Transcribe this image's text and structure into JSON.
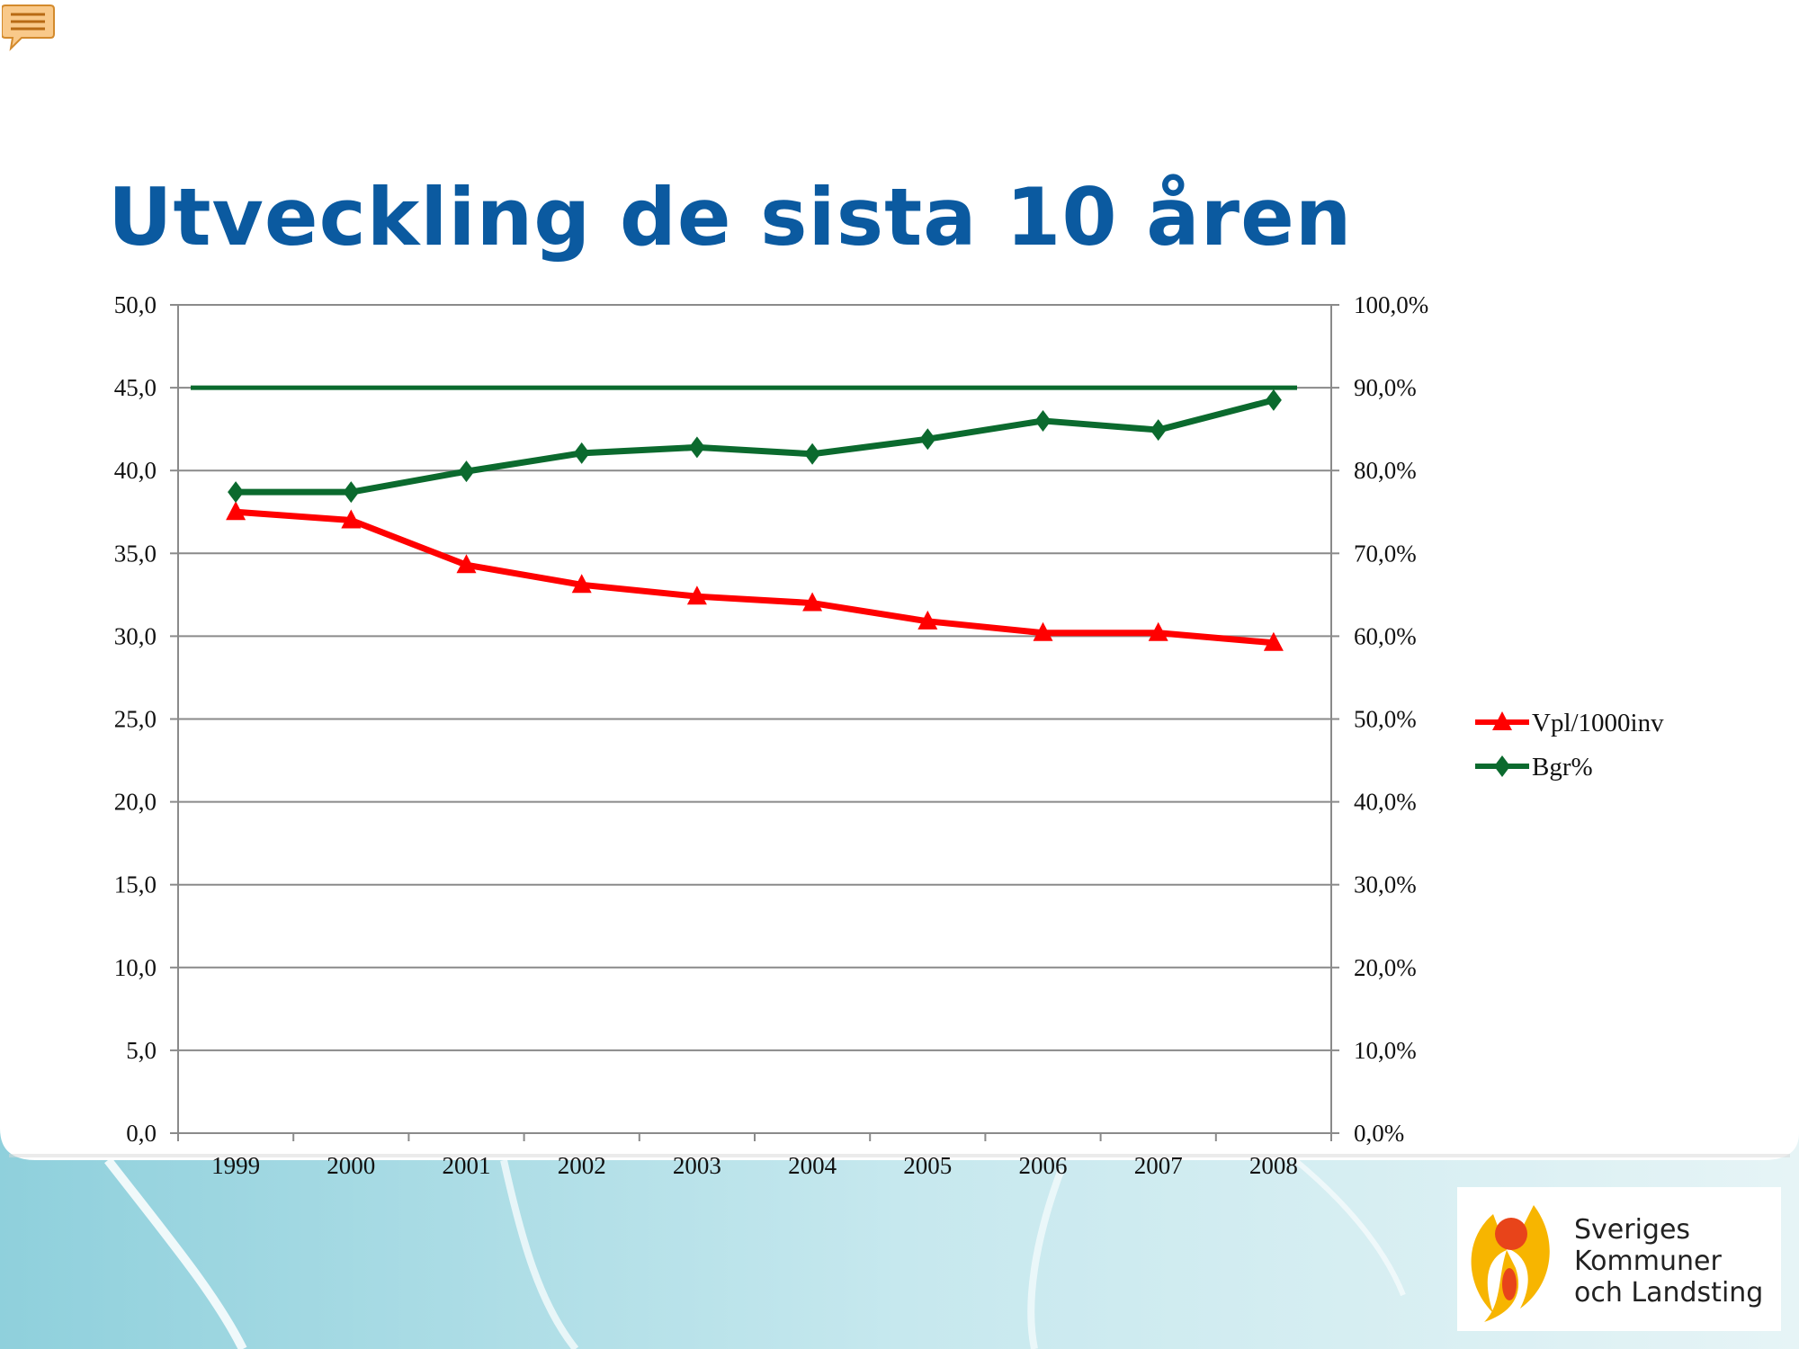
{
  "slide": {
    "title": "Utveckling de sista 10 åren",
    "logo_text": [
      "Sveriges",
      "Kommuner",
      "och Landsting"
    ],
    "comment_icon": "speech-bubble-icon"
  },
  "chart_data": {
    "type": "line",
    "title": "",
    "categories": [
      "1999",
      "2000",
      "2001",
      "2002",
      "2003",
      "2004",
      "2005",
      "2006",
      "2007",
      "2008"
    ],
    "y_left": {
      "range": [
        0,
        50
      ],
      "ticks": [
        "0,0",
        "5,0",
        "10,0",
        "15,0",
        "20,0",
        "25,0",
        "30,0",
        "35,0",
        "40,0",
        "45,0",
        "50,0"
      ]
    },
    "y_right": {
      "range": [
        0,
        100
      ],
      "ticks": [
        "0,0%",
        "10,0%",
        "20,0%",
        "30,0%",
        "40,0%",
        "50,0%",
        "60,0%",
        "70,0%",
        "80,0%",
        "90,0%",
        "100,0%"
      ]
    },
    "grid": true,
    "legend_position": "right",
    "series": [
      {
        "name": "Vpl/1000inv",
        "axis": "left",
        "marker": "triangle",
        "color": "#ff0000",
        "values": [
          37.5,
          37.0,
          34.3,
          33.1,
          32.4,
          32.0,
          30.9,
          30.2,
          30.2,
          29.6
        ]
      },
      {
        "name": "Bgr%",
        "axis": "right",
        "marker": "diamond",
        "color": "#0b6a2e",
        "values": [
          77.4,
          77.4,
          79.9,
          82.1,
          82.8,
          82.0,
          83.8,
          86.0,
          84.9,
          88.5
        ]
      }
    ],
    "reference_line": {
      "axis": "right",
      "value": 90.0,
      "color": "#0b6a2e"
    }
  }
}
